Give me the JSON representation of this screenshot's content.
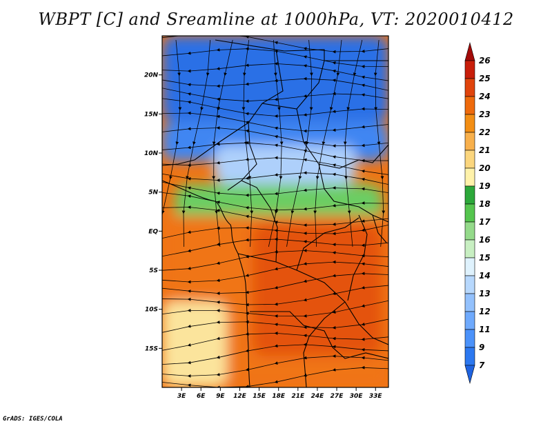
{
  "header": {
    "title": "WBPT [C] and Sreamline at 1000hPa, VT: 2020010412"
  },
  "footer": {
    "credit": "GrADS: IGES/COLA"
  },
  "chart_data": {
    "type": "heatmap",
    "title": "WBPT [C] and Sreamline at 1000hPa, VT: 2020010412",
    "xlabel": "",
    "ylabel": "",
    "xlim": [
      0,
      35
    ],
    "ylim": [
      -20,
      25
    ],
    "x_ticks": [
      {
        "value": 3,
        "label": "3E"
      },
      {
        "value": 6,
        "label": "6E"
      },
      {
        "value": 9,
        "label": "9E"
      },
      {
        "value": 12,
        "label": "12E"
      },
      {
        "value": 15,
        "label": "15E"
      },
      {
        "value": 18,
        "label": "18E"
      },
      {
        "value": 21,
        "label": "21E"
      },
      {
        "value": 24,
        "label": "24E"
      },
      {
        "value": 27,
        "label": "27E"
      },
      {
        "value": 30,
        "label": "30E"
      },
      {
        "value": 33,
        "label": "33E"
      }
    ],
    "y_ticks": [
      {
        "value": 20,
        "label": "20N"
      },
      {
        "value": 15,
        "label": "15N"
      },
      {
        "value": 10,
        "label": "10N"
      },
      {
        "value": 5,
        "label": "5N"
      },
      {
        "value": 0,
        "label": "EQ"
      },
      {
        "value": -5,
        "label": "5S"
      },
      {
        "value": -10,
        "label": "10S"
      },
      {
        "value": -15,
        "label": "15S"
      }
    ],
    "colorbar": {
      "levels": [
        "7",
        "9",
        "11",
        "12",
        "13",
        "14",
        "15",
        "16",
        "17",
        "18",
        "19",
        "20",
        "21",
        "22",
        "23",
        "24",
        "25",
        "26"
      ],
      "colors": [
        "#1f63e0",
        "#2c78f0",
        "#4b92fa",
        "#6faafd",
        "#93c1fd",
        "#b7d8fd",
        "#dff2fd",
        "#c8efc2",
        "#94da8a",
        "#55c54e",
        "#2ca83a",
        "#fff2aa",
        "#fbd67e",
        "#f8b04c",
        "#f38e14",
        "#ee6a0c",
        "#e0440c",
        "#c81e0a",
        "#a30a08"
      ]
    },
    "field_regions": [
      {
        "level": "9",
        "color": "#2c6fe6",
        "lon": [
          0,
          35
        ],
        "lat": [
          14,
          25
        ]
      },
      {
        "level": "11",
        "color": "#3f86f2",
        "lon": [
          0,
          35
        ],
        "lat": [
          9,
          14
        ]
      },
      {
        "level": "14",
        "color": "#aed0fb",
        "lon": [
          8,
          30
        ],
        "lat": [
          6,
          11
        ]
      },
      {
        "level": "17",
        "color": "#6ccd64",
        "lon": [
          2,
          34
        ],
        "lat": [
          1,
          6
        ]
      },
      {
        "level": "23",
        "color": "#f07414",
        "lon": [
          0,
          35
        ],
        "lat": [
          -20,
          2
        ]
      },
      {
        "level": "24",
        "color": "#e4520e",
        "lon": [
          14,
          34
        ],
        "lat": [
          -16,
          1
        ]
      },
      {
        "level": "19",
        "color": "#fbe49c",
        "lon": [
          0,
          10
        ],
        "lat": [
          -20,
          -9
        ]
      }
    ]
  }
}
